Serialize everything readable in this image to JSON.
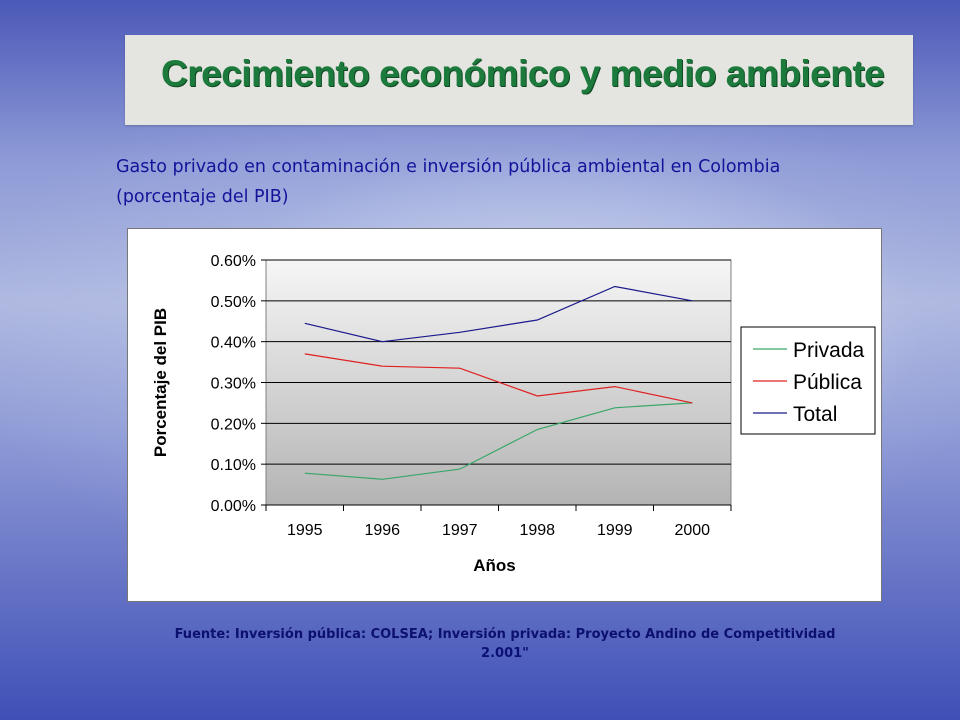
{
  "slide": {
    "title": "Crecimiento económico y medio ambiente",
    "subtitle_line1": "Gasto privado en contaminación e inversión pública ambiental en Colombia",
    "subtitle_line2": "(porcentaje del PIB)",
    "source_line1": "Fuente: Inversión pública: COLSEA; Inversión privada: Proyecto Andino de Competitividad",
    "source_line2": "2.001\""
  },
  "colors": {
    "title": "#1c7a3c",
    "subtitle": "#13139a",
    "source": "#0c1070"
  },
  "chart_data": {
    "type": "line",
    "title": "",
    "xlabel": "Años",
    "ylabel": "Porcentaje del PIB",
    "categories": [
      "1995",
      "1996",
      "1997",
      "1998",
      "1999",
      "2000"
    ],
    "ylim": [
      0,
      0.6
    ],
    "yticks": [
      "0.00%",
      "0.10%",
      "0.20%",
      "0.30%",
      "0.40%",
      "0.50%",
      "0.60%"
    ],
    "grid": true,
    "legend_position": "right",
    "series": [
      {
        "name": "Privada",
        "color": "#3aa66a",
        "values": [
          0.078,
          0.063,
          0.088,
          0.185,
          0.238,
          0.25
        ]
      },
      {
        "name": "Pública",
        "color": "#e02020",
        "values": [
          0.37,
          0.34,
          0.335,
          0.267,
          0.29,
          0.25
        ]
      },
      {
        "name": "Total",
        "color": "#1a1a8c",
        "values": [
          0.445,
          0.4,
          0.423,
          0.453,
          0.535,
          0.5
        ]
      }
    ]
  }
}
